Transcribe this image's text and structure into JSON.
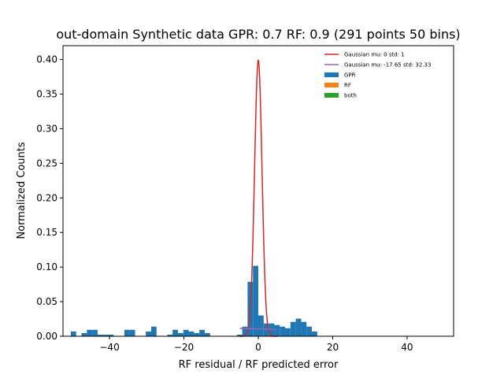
{
  "chart_data": {
    "type": "bar",
    "title": "out-domain Synthetic data GPR: 0.7 RF: 0.9 (291 points 50 bins)",
    "xlabel": "RF residual / RF predicted error",
    "ylabel": "Normalized Counts",
    "xlim": [
      -52.5,
      52.5
    ],
    "ylim": [
      0,
      0.42
    ],
    "xticks": [
      -40,
      -20,
      0,
      20,
      40
    ],
    "xtick_labels": [
      "−40",
      "−20",
      "0",
      "20",
      "40"
    ],
    "yticks": [
      0.0,
      0.05,
      0.1,
      0.15,
      0.2,
      0.25,
      0.3,
      0.35,
      0.4
    ],
    "ytick_labels": [
      "0.00",
      "0.05",
      "0.10",
      "0.15",
      "0.20",
      "0.25",
      "0.30",
      "0.35",
      "0.40"
    ],
    "legend_position": "top-right",
    "bin_width": 1.44,
    "series": [
      {
        "name": "GPR",
        "kind": "histogram",
        "color": "#1f77b4",
        "bins": [
          {
            "x0": -50.4,
            "y": 0.0069
          },
          {
            "x0": -48.96,
            "y": 0.0
          },
          {
            "x0": -47.52,
            "y": 0.0046
          },
          {
            "x0": -46.08,
            "y": 0.0093
          },
          {
            "x0": -44.64,
            "y": 0.0093
          },
          {
            "x0": -43.2,
            "y": 0.0023
          },
          {
            "x0": -41.76,
            "y": 0.0023
          },
          {
            "x0": -40.32,
            "y": 0.0023
          },
          {
            "x0": -38.88,
            "y": 0.0
          },
          {
            "x0": -37.44,
            "y": 0.0
          },
          {
            "x0": -36.0,
            "y": 0.0093
          },
          {
            "x0": -34.56,
            "y": 0.0093
          },
          {
            "x0": -33.12,
            "y": 0.0
          },
          {
            "x0": -31.68,
            "y": 0.0
          },
          {
            "x0": -30.24,
            "y": 0.0069
          },
          {
            "x0": -28.8,
            "y": 0.0139
          },
          {
            "x0": -27.36,
            "y": 0.0
          },
          {
            "x0": -25.92,
            "y": 0.0
          },
          {
            "x0": -24.48,
            "y": 0.0023
          },
          {
            "x0": -23.04,
            "y": 0.0093
          },
          {
            "x0": -21.6,
            "y": 0.0046
          },
          {
            "x0": -20.16,
            "y": 0.0093
          },
          {
            "x0": -18.72,
            "y": 0.0069
          },
          {
            "x0": -17.28,
            "y": 0.0046
          },
          {
            "x0": -15.84,
            "y": 0.0093
          },
          {
            "x0": -14.4,
            "y": 0.0046
          },
          {
            "x0": -12.96,
            "y": 0.0
          },
          {
            "x0": -11.52,
            "y": 0.0
          },
          {
            "x0": -10.08,
            "y": 0.0
          },
          {
            "x0": -8.64,
            "y": 0.0
          },
          {
            "x0": -7.2,
            "y": 0.0
          },
          {
            "x0": -5.76,
            "y": 0.0023
          },
          {
            "x0": -4.32,
            "y": 0.0139
          },
          {
            "x0": -2.88,
            "y": 0.0787
          },
          {
            "x0": -1.44,
            "y": 0.1018
          },
          {
            "x0": 0.0,
            "y": 0.0301
          },
          {
            "x0": 1.44,
            "y": 0.0185
          },
          {
            "x0": 2.88,
            "y": 0.0185
          },
          {
            "x0": 4.32,
            "y": 0.0162
          },
          {
            "x0": 5.76,
            "y": 0.0139
          },
          {
            "x0": 7.2,
            "y": 0.0116
          },
          {
            "x0": 8.64,
            "y": 0.0208
          },
          {
            "x0": 10.08,
            "y": 0.0255
          },
          {
            "x0": 11.52,
            "y": 0.0208
          },
          {
            "x0": 12.96,
            "y": 0.0139
          },
          {
            "x0": 14.4,
            "y": 0.0069
          },
          {
            "x0": 15.84,
            "y": 0.0
          },
          {
            "x0": 17.28,
            "y": 0.0
          },
          {
            "x0": 18.72,
            "y": 0.0
          },
          {
            "x0": 20.16,
            "y": 0.0
          }
        ]
      },
      {
        "name": "RF",
        "kind": "histogram",
        "color": "#ff7f0e",
        "bins": []
      },
      {
        "name": "both",
        "kind": "histogram",
        "color": "#2ca02c",
        "bins": []
      },
      {
        "name": "Gaussian mu: 0 std: 1",
        "kind": "gaussian-line",
        "color": "#d62728",
        "mu": 0,
        "std": 1,
        "x_range": [
          -5,
          5
        ]
      },
      {
        "name": "Gaussian mu: -17.65 std: 32.33",
        "kind": "gaussian-line",
        "color": "#9467bd",
        "mu": -17.65,
        "std": 32.33,
        "x_range": [
          -5,
          5
        ]
      }
    ],
    "legend_order": [
      "Gaussian mu: 0 std: 1",
      "Gaussian mu: -17.65 std: 32.33",
      "GPR",
      "RF",
      "both"
    ]
  }
}
